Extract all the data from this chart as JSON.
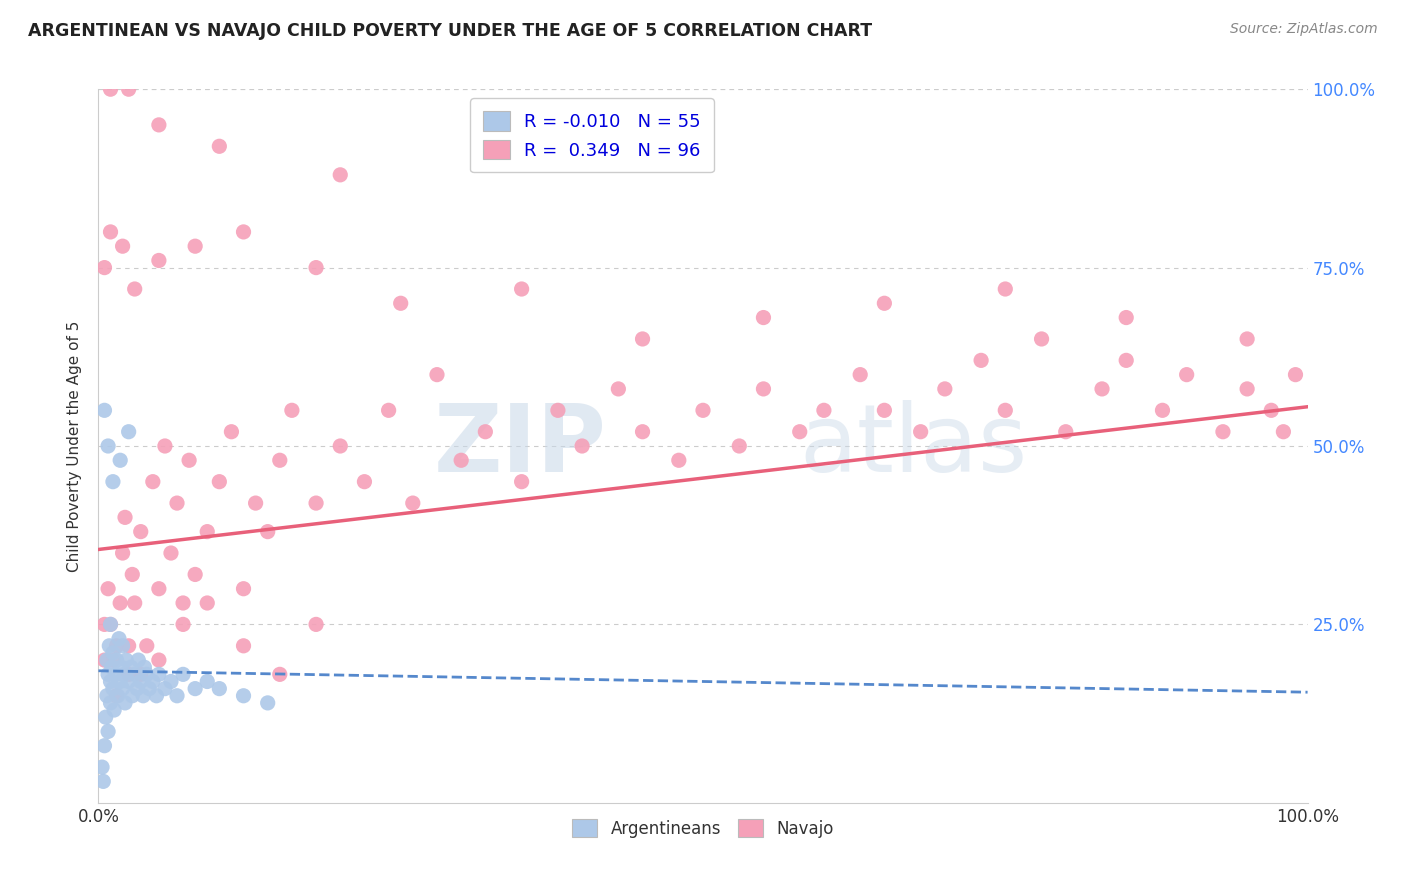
{
  "title": "ARGENTINEAN VS NAVAJO CHILD POVERTY UNDER THE AGE OF 5 CORRELATION CHART",
  "source": "Source: ZipAtlas.com",
  "ylabel": "Child Poverty Under the Age of 5",
  "ytick_labels": [
    "25.0%",
    "50.0%",
    "75.0%",
    "100.0%"
  ],
  "ytick_values": [
    0.25,
    0.5,
    0.75,
    1.0
  ],
  "legend_label1": "Argentineans",
  "legend_label2": "Navajo",
  "R1": "-0.010",
  "N1": "55",
  "R2": "0.349",
  "N2": "96",
  "watermark_zip": "ZIP",
  "watermark_atlas": "atlas",
  "argentinean_color": "#adc8e8",
  "navajo_color": "#f5a0b8",
  "argentinean_line_color": "#5588cc",
  "navajo_line_color": "#e8607a",
  "background_color": "#ffffff",
  "grid_color": "#cccccc",
  "title_color": "#222222",
  "source_color": "#888888",
  "right_tick_color": "#4488ff",
  "argentinean_x": [
    0.003,
    0.004,
    0.005,
    0.006,
    0.007,
    0.007,
    0.008,
    0.008,
    0.009,
    0.01,
    0.01,
    0.01,
    0.011,
    0.012,
    0.012,
    0.013,
    0.014,
    0.015,
    0.016,
    0.017,
    0.018,
    0.019,
    0.02,
    0.02,
    0.021,
    0.022,
    0.023,
    0.025,
    0.027,
    0.028,
    0.03,
    0.032,
    0.033,
    0.035,
    0.037,
    0.038,
    0.04,
    0.042,
    0.045,
    0.048,
    0.05,
    0.055,
    0.06,
    0.065,
    0.07,
    0.08,
    0.09,
    0.1,
    0.12,
    0.14,
    0.005,
    0.008,
    0.012,
    0.018,
    0.025
  ],
  "argentinean_y": [
    0.05,
    0.03,
    0.08,
    0.12,
    0.15,
    0.2,
    0.1,
    0.18,
    0.22,
    0.17,
    0.14,
    0.25,
    0.19,
    0.16,
    0.21,
    0.13,
    0.18,
    0.2,
    0.15,
    0.23,
    0.17,
    0.19,
    0.16,
    0.22,
    0.18,
    0.14,
    0.2,
    0.17,
    0.19,
    0.15,
    0.18,
    0.16,
    0.2,
    0.17,
    0.15,
    0.19,
    0.18,
    0.16,
    0.17,
    0.15,
    0.18,
    0.16,
    0.17,
    0.15,
    0.18,
    0.16,
    0.17,
    0.16,
    0.15,
    0.14,
    0.55,
    0.5,
    0.45,
    0.48,
    0.52
  ],
  "navajo_x": [
    0.005,
    0.008,
    0.012,
    0.015,
    0.018,
    0.02,
    0.022,
    0.025,
    0.028,
    0.03,
    0.035,
    0.04,
    0.045,
    0.05,
    0.055,
    0.06,
    0.065,
    0.07,
    0.075,
    0.08,
    0.09,
    0.1,
    0.11,
    0.12,
    0.13,
    0.14,
    0.15,
    0.16,
    0.18,
    0.2,
    0.22,
    0.24,
    0.26,
    0.28,
    0.3,
    0.32,
    0.35,
    0.38,
    0.4,
    0.43,
    0.45,
    0.48,
    0.5,
    0.53,
    0.55,
    0.58,
    0.6,
    0.63,
    0.65,
    0.68,
    0.7,
    0.73,
    0.75,
    0.78,
    0.8,
    0.83,
    0.85,
    0.88,
    0.9,
    0.93,
    0.95,
    0.97,
    0.98,
    0.99,
    0.005,
    0.01,
    0.015,
    0.025,
    0.035,
    0.05,
    0.07,
    0.09,
    0.12,
    0.15,
    0.18,
    0.005,
    0.01,
    0.02,
    0.03,
    0.05,
    0.08,
    0.12,
    0.18,
    0.25,
    0.35,
    0.45,
    0.55,
    0.65,
    0.75,
    0.85,
    0.95,
    0.01,
    0.025,
    0.05,
    0.1,
    0.2
  ],
  "navajo_y": [
    0.25,
    0.3,
    0.2,
    0.22,
    0.28,
    0.35,
    0.4,
    0.18,
    0.32,
    0.28,
    0.38,
    0.22,
    0.45,
    0.3,
    0.5,
    0.35,
    0.42,
    0.28,
    0.48,
    0.32,
    0.38,
    0.45,
    0.52,
    0.3,
    0.42,
    0.38,
    0.48,
    0.55,
    0.42,
    0.5,
    0.45,
    0.55,
    0.42,
    0.6,
    0.48,
    0.52,
    0.45,
    0.55,
    0.5,
    0.58,
    0.52,
    0.48,
    0.55,
    0.5,
    0.58,
    0.52,
    0.55,
    0.6,
    0.55,
    0.52,
    0.58,
    0.62,
    0.55,
    0.65,
    0.52,
    0.58,
    0.62,
    0.55,
    0.6,
    0.52,
    0.58,
    0.55,
    0.52,
    0.6,
    0.2,
    0.25,
    0.15,
    0.22,
    0.18,
    0.2,
    0.25,
    0.28,
    0.22,
    0.18,
    0.25,
    0.75,
    0.8,
    0.78,
    0.72,
    0.76,
    0.78,
    0.8,
    0.75,
    0.7,
    0.72,
    0.65,
    0.68,
    0.7,
    0.72,
    0.68,
    0.65,
    1.0,
    1.0,
    0.95,
    0.92,
    0.88
  ]
}
